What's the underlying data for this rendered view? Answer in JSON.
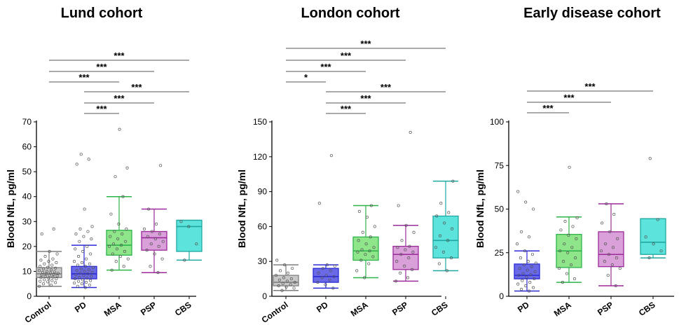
{
  "chart_data": [
    {
      "type": "box",
      "title": "Lund cohort",
      "ylabel": "Blood NfL, pg/ml",
      "ylim": [
        0,
        70
      ],
      "yticks": [
        0,
        10,
        20,
        30,
        40,
        50,
        60,
        70
      ],
      "categories": [
        "Control",
        "PD",
        "MSA",
        "PSP",
        "CBS"
      ],
      "colors": [
        "#7f7f7f",
        "#2b2bd6",
        "#2db34a",
        "#9b2a9b",
        "#1fa7a2"
      ],
      "fills": [
        "#c8c8c8",
        "#6a6ae8",
        "#8fe68a",
        "#d9a0d9",
        "#5ce3dc"
      ],
      "boxes": [
        {
          "whisker_low": 4,
          "q1": 7.5,
          "median": 9,
          "q3": 11.5,
          "whisker_high": 18,
          "points": [
            4,
            4.5,
            5,
            5.5,
            5.8,
            6,
            6.3,
            6.6,
            7,
            7.2,
            7.5,
            7.7,
            8,
            8.2,
            8.4,
            8.6,
            8.8,
            9,
            9.2,
            9.4,
            9.6,
            9.8,
            10,
            10.3,
            10.6,
            11,
            11.3,
            11.6,
            12,
            12.5,
            13,
            13.5,
            14,
            14.5,
            15,
            16,
            17,
            18,
            25,
            27
          ]
        },
        {
          "whisker_low": 3.5,
          "q1": 7,
          "median": 9,
          "q3": 12,
          "whisker_high": 20.5,
          "points": [
            3.5,
            4,
            4.5,
            5,
            5.3,
            5.6,
            6,
            6.3,
            6.6,
            7,
            7.3,
            7.6,
            8,
            8.3,
            8.6,
            9,
            9.3,
            9.6,
            10,
            10.3,
            10.6,
            11,
            11.5,
            12,
            12.5,
            13,
            13.5,
            14,
            15,
            16,
            17,
            18,
            19,
            20,
            22,
            23,
            24,
            25,
            26,
            27,
            28,
            35,
            53,
            55,
            57
          ]
        },
        {
          "whisker_low": 10.5,
          "q1": 16.5,
          "median": 20.5,
          "q3": 26.5,
          "whisker_high": 40,
          "points": [
            10.5,
            12,
            14,
            15,
            16,
            17,
            18,
            19,
            20,
            20.5,
            21,
            22,
            23,
            24,
            25,
            26,
            27,
            29,
            33,
            40,
            48,
            51.5,
            67
          ]
        },
        {
          "whisker_low": 9.5,
          "q1": 18.5,
          "median": 23.5,
          "q3": 26,
          "whisker_high": 35,
          "points": [
            9.5,
            12,
            15,
            17,
            18.5,
            20,
            21,
            22,
            23,
            24,
            25,
            26,
            27,
            29,
            35,
            52.5
          ]
        },
        {
          "whisker_low": 14.5,
          "q1": 18,
          "median": 28,
          "q3": 30.5,
          "whisker_high": 30.5,
          "points": [
            14.5,
            21,
            28,
            30
          ]
        }
      ],
      "significance": [
        {
          "from": "Control",
          "to": "CBS",
          "label": "***"
        },
        {
          "from": "Control",
          "to": "PSP",
          "label": "***"
        },
        {
          "from": "Control",
          "to": "MSA",
          "label": "***"
        },
        {
          "from": "PD",
          "to": "CBS",
          "label": "***"
        },
        {
          "from": "PD",
          "to": "PSP",
          "label": "***"
        },
        {
          "from": "PD",
          "to": "MSA",
          "label": "***"
        }
      ]
    },
    {
      "type": "box",
      "title": "London cohort",
      "ylabel": "Blood NfL, pg/ml",
      "ylim": [
        0,
        150
      ],
      "yticks": [
        0,
        30,
        60,
        90,
        120,
        150
      ],
      "categories": [
        "Control",
        "PD",
        "MSA",
        "PSP",
        "CBS"
      ],
      "colors": [
        "#7f7f7f",
        "#2b2bd6",
        "#2db34a",
        "#9b2a9b",
        "#1fa7a2"
      ],
      "fills": [
        "#c8c8c8",
        "#6a6ae8",
        "#8fe68a",
        "#d9a0d9",
        "#5ce3dc"
      ],
      "boxes": [
        {
          "whisker_low": 5,
          "q1": 9,
          "median": 12,
          "q3": 18,
          "whisker_high": 27,
          "points": [
            5,
            7,
            8,
            9,
            10,
            11,
            12,
            13,
            14,
            15,
            16,
            18,
            20,
            22,
            24,
            27,
            31
          ]
        },
        {
          "whisker_low": 7,
          "q1": 12,
          "median": 17,
          "q3": 24,
          "whisker_high": 27,
          "points": [
            7,
            10,
            12,
            14,
            16,
            17,
            18,
            20,
            22,
            24,
            26,
            27,
            80,
            121
          ]
        },
        {
          "whisker_low": 16,
          "q1": 31,
          "median": 39,
          "q3": 51,
          "whisker_high": 78,
          "points": [
            16,
            22,
            28,
            31,
            34,
            36,
            38,
            39,
            40,
            42,
            45,
            48,
            51,
            55,
            60,
            68,
            73,
            78
          ]
        },
        {
          "whisker_low": 13,
          "q1": 23,
          "median": 36,
          "q3": 43,
          "whisker_high": 61,
          "points": [
            13,
            16,
            20,
            23,
            26,
            30,
            33,
            36,
            38,
            40,
            42,
            43,
            48,
            55,
            61,
            78,
            141
          ]
        },
        {
          "whisker_low": 22,
          "q1": 33,
          "median": 48,
          "q3": 69,
          "whisker_high": 99,
          "points": [
            22,
            28,
            33,
            38,
            42,
            48,
            52,
            58,
            63,
            69,
            72,
            80,
            99
          ]
        }
      ],
      "significance": [
        {
          "from": "Control",
          "to": "CBS",
          "label": "***"
        },
        {
          "from": "Control",
          "to": "PSP",
          "label": "***"
        },
        {
          "from": "Control",
          "to": "MSA",
          "label": "***"
        },
        {
          "from": "Control",
          "to": "PD",
          "label": "*"
        },
        {
          "from": "PD",
          "to": "CBS",
          "label": "***"
        },
        {
          "from": "PD",
          "to": "PSP",
          "label": "***"
        },
        {
          "from": "PD",
          "to": "MSA",
          "label": "***"
        }
      ]
    },
    {
      "type": "box",
      "title": "Early disease cohort",
      "ylabel": "Blood NfL, pg/ml",
      "ylim": [
        0,
        100
      ],
      "yticks": [
        0,
        25,
        50,
        75,
        100
      ],
      "categories": [
        "PD",
        "MSA",
        "PSP",
        "CBS"
      ],
      "colors": [
        "#2b2bd6",
        "#2db34a",
        "#9b2a9b",
        "#1fa7a2"
      ],
      "fills": [
        "#6a6ae8",
        "#8fe68a",
        "#d9a0d9",
        "#5ce3dc"
      ],
      "boxes": [
        {
          "whisker_low": 3,
          "q1": 10,
          "median": 12,
          "q3": 18.5,
          "whisker_high": 26,
          "points": [
            3,
            4,
            5,
            6,
            7,
            8,
            9,
            10,
            11,
            12,
            12.5,
            13,
            14,
            15,
            16,
            17,
            18,
            19,
            20,
            22,
            24,
            26,
            30,
            34,
            37,
            50,
            54,
            60
          ]
        },
        {
          "whisker_low": 8,
          "q1": 16.5,
          "median": 26,
          "q3": 35.5,
          "whisker_high": 45.5,
          "points": [
            8,
            10,
            13,
            16,
            18,
            20,
            22,
            25,
            26,
            28,
            30,
            33,
            35,
            38,
            40,
            43,
            45,
            74
          ]
        },
        {
          "whisker_low": 6,
          "q1": 17,
          "median": 24,
          "q3": 37,
          "whisker_high": 53,
          "points": [
            6,
            12,
            16,
            18,
            20,
            22,
            24,
            26,
            28,
            30,
            33,
            37,
            42,
            47,
            53
          ]
        },
        {
          "whisker_low": 22,
          "q1": 24,
          "median": 31,
          "q3": 44.5,
          "whisker_high": 44.5,
          "points": [
            22,
            26,
            30,
            34,
            44,
            79
          ]
        }
      ],
      "significance": [
        {
          "from": "PD",
          "to": "CBS",
          "label": "***"
        },
        {
          "from": "PD",
          "to": "PSP",
          "label": "***"
        },
        {
          "from": "PD",
          "to": "MSA",
          "label": "***"
        }
      ]
    }
  ]
}
